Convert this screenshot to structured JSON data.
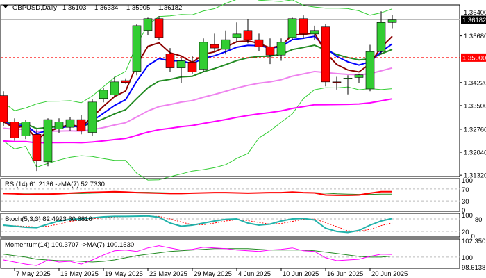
{
  "chart_data": {
    "type": "candlestick",
    "title": "GBPUSD,Daily",
    "ohlc_readout": [
      "1.36103",
      "1.36334",
      "1.35905",
      "1.36182"
    ],
    "price_ticks": [
      "1.36400",
      "1.35680",
      "1.34220",
      "1.33500",
      "1.32760",
      "1.32040",
      "1.31320"
    ],
    "current_price": "1.36182",
    "level_line": "1.35000",
    "ylim": [
      1.3128,
      1.3665
    ],
    "x_labels": [
      "7 May 2025",
      "13 May 2025",
      "19 May 2025",
      "23 May 2025",
      "29 May 2025",
      "4 Jun 2025",
      "10 Jun 2025",
      "16 Jun 2025",
      "20 Jun 2025"
    ],
    "candles": [
      [
        1.3381,
        1.3395,
        1.3285,
        1.3299
      ],
      [
        1.3299,
        1.331,
        1.324,
        1.3249
      ],
      [
        1.3255,
        1.3305,
        1.3245,
        1.3299
      ],
      [
        1.326,
        1.3275,
        1.3145,
        1.3178
      ],
      [
        1.3174,
        1.331,
        1.316,
        1.3306
      ],
      [
        1.3277,
        1.331,
        1.3265,
        1.3299
      ],
      [
        1.3282,
        1.3315,
        1.327,
        1.3306
      ],
      [
        1.3306,
        1.332,
        1.326,
        1.3271
      ],
      [
        1.3266,
        1.337,
        1.3255,
        1.3361
      ],
      [
        1.3372,
        1.3405,
        1.336,
        1.3398
      ],
      [
        1.3383,
        1.344,
        1.3375,
        1.3424
      ],
      [
        1.3428,
        1.3435,
        1.3418,
        1.3422
      ],
      [
        1.3457,
        1.3605,
        1.3445,
        1.36
      ],
      [
        1.3585,
        1.3625,
        1.357,
        1.3622
      ],
      [
        1.3622,
        1.363,
        1.3555,
        1.3563
      ],
      [
        1.3512,
        1.353,
        1.3455,
        1.3468
      ],
      [
        1.3468,
        1.35,
        1.342,
        1.349
      ],
      [
        1.3486,
        1.3505,
        1.345,
        1.3455
      ],
      [
        1.3464,
        1.356,
        1.3455,
        1.3548
      ],
      [
        1.3541,
        1.3575,
        1.352,
        1.353
      ],
      [
        1.3526,
        1.3585,
        1.351,
        1.3556
      ],
      [
        1.3563,
        1.361,
        1.355,
        1.3574
      ],
      [
        1.3585,
        1.362,
        1.3545,
        1.3556
      ],
      [
        1.3556,
        1.3575,
        1.352,
        1.3534
      ],
      [
        1.3534,
        1.356,
        1.348,
        1.3508
      ],
      [
        1.3508,
        1.356,
        1.349,
        1.3548
      ],
      [
        1.3563,
        1.3625,
        1.3555,
        1.3622
      ],
      [
        1.3622,
        1.3632,
        1.356,
        1.3574
      ],
      [
        1.3574,
        1.36,
        1.3555,
        1.3585
      ],
      [
        1.3596,
        1.3605,
        1.341,
        1.3424
      ],
      [
        1.3424,
        1.344,
        1.34,
        1.3422
      ],
      [
        1.3433,
        1.3445,
        1.3385,
        1.3436
      ],
      [
        1.3438,
        1.345,
        1.342,
        1.3446
      ],
      [
        1.3402,
        1.354,
        1.3395,
        1.3519
      ],
      [
        1.3519,
        1.3645,
        1.351,
        1.361
      ],
      [
        1.361,
        1.3633,
        1.359,
        1.3618
      ]
    ],
    "indicators": {
      "rsi": {
        "label": "RSI(14) 61.2136  ->MA(7) 52.7330",
        "levels": [
          "100",
          "70",
          "30",
          "0"
        ],
        "values": [
          55,
          54,
          52,
          53,
          53,
          54,
          56,
          58,
          59,
          60,
          61,
          60,
          58,
          57,
          56,
          55,
          55,
          56,
          57,
          58,
          58,
          57,
          56,
          57,
          58,
          58,
          60,
          58,
          57,
          50,
          49,
          49,
          50,
          56,
          61,
          61
        ],
        "ma": [
          55,
          54,
          54,
          54,
          54,
          54,
          55,
          55,
          56,
          57,
          58,
          59,
          59,
          59,
          58,
          57,
          57,
          57,
          57,
          57,
          57,
          57,
          57,
          57,
          57,
          57,
          58,
          58,
          58,
          56,
          54,
          53,
          52,
          52,
          53,
          53
        ]
      },
      "stoch": {
        "label": "Stoch(5,3,3) 82.4923 60.6816",
        "levels": [
          "100",
          "80",
          "20",
          "0"
        ],
        "main": [
          50,
          45,
          40,
          38,
          55,
          70,
          78,
          80,
          85,
          90,
          92,
          92,
          93,
          94,
          88,
          60,
          45,
          50,
          60,
          70,
          78,
          80,
          60,
          50,
          55,
          70,
          80,
          82,
          75,
          35,
          20,
          15,
          25,
          50,
          70,
          82
        ],
        "signal": [
          48,
          47,
          44,
          41,
          45,
          55,
          68,
          76,
          81,
          85,
          89,
          91,
          92,
          93,
          92,
          80,
          65,
          52,
          52,
          60,
          70,
          76,
          72,
          63,
          55,
          58,
          68,
          78,
          80,
          62,
          43,
          23,
          20,
          30,
          48,
          61
        ]
      },
      "momentum": {
        "label": "Momentum(14) 100.3707  ->MA(7) 100.1530",
        "levels": [
          "102.3509",
          "100",
          "98.6138"
        ],
        "values": [
          99.6,
          99.3,
          99.0,
          98.8,
          99.6,
          99.3,
          99.4,
          99.0,
          99.6,
          100.3,
          100.9,
          101.0,
          100.8,
          101.3,
          101.6,
          101.3,
          101.0,
          101.1,
          101.4,
          101.3,
          101.2,
          101.0,
          100.9,
          100.8,
          101.0,
          101.1,
          101.3,
          100.9,
          100.8,
          99.9,
          99.5,
          99.6,
          99.7,
          100.1,
          100.4,
          100.37
        ],
        "ma": [
          100.4,
          100.2,
          100.0,
          99.7,
          99.6,
          99.5,
          99.5,
          99.4,
          99.3,
          99.4,
          99.6,
          99.9,
          100.2,
          100.4,
          100.6,
          100.8,
          100.9,
          101.0,
          101.1,
          101.2,
          101.2,
          101.2,
          101.2,
          101.1,
          101.0,
          101.0,
          101.0,
          101.0,
          100.9,
          100.7,
          100.5,
          100.3,
          100.1,
          100.0,
          100.0,
          100.15
        ]
      }
    },
    "colors": {
      "bull": "#32cd32",
      "bear": "#ff0000",
      "ma_fast": "#8b0000",
      "ma_blue": "#0000ff",
      "ma_green": "#228b22",
      "ma_violet": "#ee82ee",
      "ma_magenta": "#ff00ff",
      "bands": "#32cd32",
      "stoch_main": "#20b2aa",
      "stoch_signal": "#ff0000",
      "level": "#ff0000"
    }
  }
}
